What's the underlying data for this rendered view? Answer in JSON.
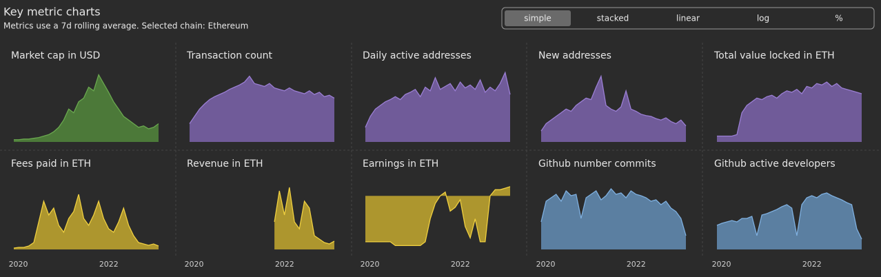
{
  "header": {
    "title": "Key metric charts",
    "subtitle": "Metrics use a 7d rolling average. Selected chain: Ethereum"
  },
  "toggles": [
    "simple",
    "stacked",
    "linear",
    "log",
    "%"
  ],
  "chart_data": [
    {
      "type": "area",
      "title": "Market cap in USD",
      "color": "#6aa84f",
      "xlim": [
        2019.9,
        2023.1
      ],
      "ylim": [
        0,
        100
      ],
      "values": [
        3,
        3,
        4,
        4,
        5,
        6,
        8,
        10,
        14,
        20,
        30,
        45,
        40,
        55,
        60,
        75,
        70,
        92,
        80,
        68,
        55,
        45,
        35,
        30,
        25,
        20,
        22,
        18,
        20,
        25
      ]
    },
    {
      "type": "area",
      "title": "Transaction count",
      "color": "#9b7fd4",
      "xlim": [
        2019.9,
        2023.1
      ],
      "ylim": [
        0,
        100
      ],
      "values": [
        25,
        35,
        45,
        52,
        58,
        62,
        65,
        68,
        72,
        75,
        78,
        82,
        90,
        80,
        78,
        76,
        80,
        74,
        72,
        70,
        74,
        70,
        68,
        66,
        70,
        65,
        68,
        62,
        64,
        60
      ]
    },
    {
      "type": "area",
      "title": "Daily active addresses",
      "color": "#9b7fd4",
      "xlim": [
        2019.9,
        2023.1
      ],
      "ylim": [
        0,
        100
      ],
      "values": [
        20,
        35,
        45,
        50,
        55,
        58,
        62,
        58,
        65,
        68,
        72,
        62,
        75,
        70,
        88,
        72,
        76,
        80,
        70,
        82,
        74,
        78,
        72,
        85,
        68,
        75,
        70,
        80,
        95,
        65
      ]
    },
    {
      "type": "area",
      "title": "New addresses",
      "color": "#9b7fd4",
      "xlim": [
        2019.9,
        2023.1
      ],
      "ylim": [
        0,
        100
      ],
      "values": [
        15,
        25,
        30,
        35,
        40,
        45,
        42,
        50,
        55,
        60,
        58,
        75,
        90,
        50,
        45,
        42,
        48,
        70,
        45,
        42,
        38,
        36,
        35,
        32,
        30,
        33,
        28,
        25,
        30,
        22
      ]
    },
    {
      "type": "area",
      "title": "Total value locked in ETH",
      "color": "#9b7fd4",
      "xlim": [
        2019.9,
        2023.1
      ],
      "ylim": [
        0,
        100
      ],
      "values": [
        8,
        8,
        8,
        8,
        10,
        40,
        50,
        55,
        60,
        58,
        62,
        64,
        60,
        66,
        70,
        68,
        72,
        66,
        76,
        74,
        80,
        78,
        82,
        76,
        80,
        74,
        72,
        70,
        68,
        66
      ]
    },
    {
      "type": "area",
      "title": "Fees paid in ETH",
      "color": "#f0d040",
      "xlim": [
        2019.9,
        2023.1
      ],
      "ylim": [
        0,
        100
      ],
      "xticks": [
        2020,
        2022
      ],
      "values": [
        2,
        3,
        3,
        5,
        10,
        40,
        70,
        50,
        60,
        35,
        25,
        45,
        55,
        80,
        45,
        35,
        50,
        70,
        45,
        30,
        25,
        40,
        60,
        35,
        20,
        10,
        8,
        6,
        8,
        5
      ]
    },
    {
      "type": "area",
      "title": "Revenue in ETH",
      "color": "#f0d040",
      "xlim": [
        2019.9,
        2023.1
      ],
      "ylim": [
        0,
        100
      ],
      "xticks": [
        2020,
        2022
      ],
      "values": [
        null,
        null,
        null,
        null,
        null,
        null,
        null,
        null,
        null,
        null,
        null,
        null,
        null,
        null,
        null,
        null,
        null,
        40,
        85,
        50,
        90,
        40,
        30,
        70,
        60,
        20,
        15,
        10,
        8,
        12
      ]
    },
    {
      "type": "area",
      "title": "Earnings in ETH",
      "color": "#f0d040",
      "xlim": [
        2019.9,
        2023.1
      ],
      "ylim": [
        -70,
        20
      ],
      "xticks": [
        2020,
        2022
      ],
      "values": [
        -60,
        -60,
        -60,
        -60,
        -60,
        -60,
        -65,
        -65,
        -65,
        -65,
        -65,
        -65,
        -60,
        -30,
        -10,
        0,
        5,
        -20,
        -15,
        -5,
        -40,
        -55,
        -30,
        -60,
        -60,
        0,
        8,
        8,
        10,
        12
      ]
    },
    {
      "type": "area",
      "title": "Github number commits",
      "color": "#7fb0e0",
      "xlim": [
        2019.9,
        2023.1
      ],
      "ylim": [
        0,
        100
      ],
      "xticks": [
        2020,
        2022
      ],
      "values": [
        40,
        70,
        75,
        80,
        70,
        85,
        78,
        80,
        45,
        75,
        80,
        85,
        72,
        78,
        88,
        80,
        82,
        75,
        85,
        80,
        78,
        75,
        70,
        72,
        65,
        70,
        60,
        55,
        45,
        20
      ]
    },
    {
      "type": "area",
      "title": "Github active developers",
      "color": "#7fb0e0",
      "xlim": [
        2019.9,
        2023.1
      ],
      "ylim": [
        0,
        100
      ],
      "xticks": [
        2020,
        2022
      ],
      "values": [
        35,
        38,
        40,
        42,
        40,
        45,
        45,
        48,
        20,
        50,
        52,
        55,
        58,
        62,
        65,
        60,
        20,
        65,
        75,
        78,
        75,
        80,
        82,
        78,
        75,
        72,
        68,
        65,
        30,
        15
      ]
    }
  ]
}
